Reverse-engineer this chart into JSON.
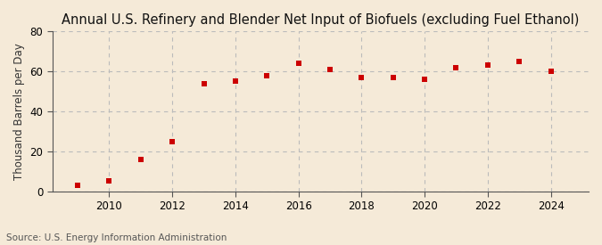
{
  "title": "Annual U.S. Refinery and Blender Net Input of Biofuels (excluding Fuel Ethanol)",
  "ylabel": "Thousand Barrels per Day",
  "source": "Source: U.S. Energy Information Administration",
  "years": [
    2009,
    2010,
    2011,
    2012,
    2013,
    2014,
    2015,
    2016,
    2017,
    2018,
    2019,
    2020,
    2021,
    2022,
    2023,
    2024
  ],
  "values": [
    3,
    5,
    16,
    25,
    54,
    55,
    58,
    64,
    61,
    57,
    57,
    56,
    62,
    63,
    65,
    60
  ],
  "marker_color": "#cc0000",
  "marker": "s",
  "marker_size": 5,
  "xlim": [
    2008.2,
    2025.2
  ],
  "ylim": [
    0,
    80
  ],
  "yticks": [
    0,
    20,
    40,
    60,
    80
  ],
  "xticks": [
    2010,
    2012,
    2014,
    2016,
    2018,
    2020,
    2022,
    2024
  ],
  "background_color": "#f5ead8",
  "plot_bg_color": "#f5ead8",
  "grid_color": "#bbbbbb",
  "grid_style": "--",
  "title_fontsize": 10.5,
  "label_fontsize": 8.5,
  "tick_fontsize": 8.5,
  "source_fontsize": 7.5
}
